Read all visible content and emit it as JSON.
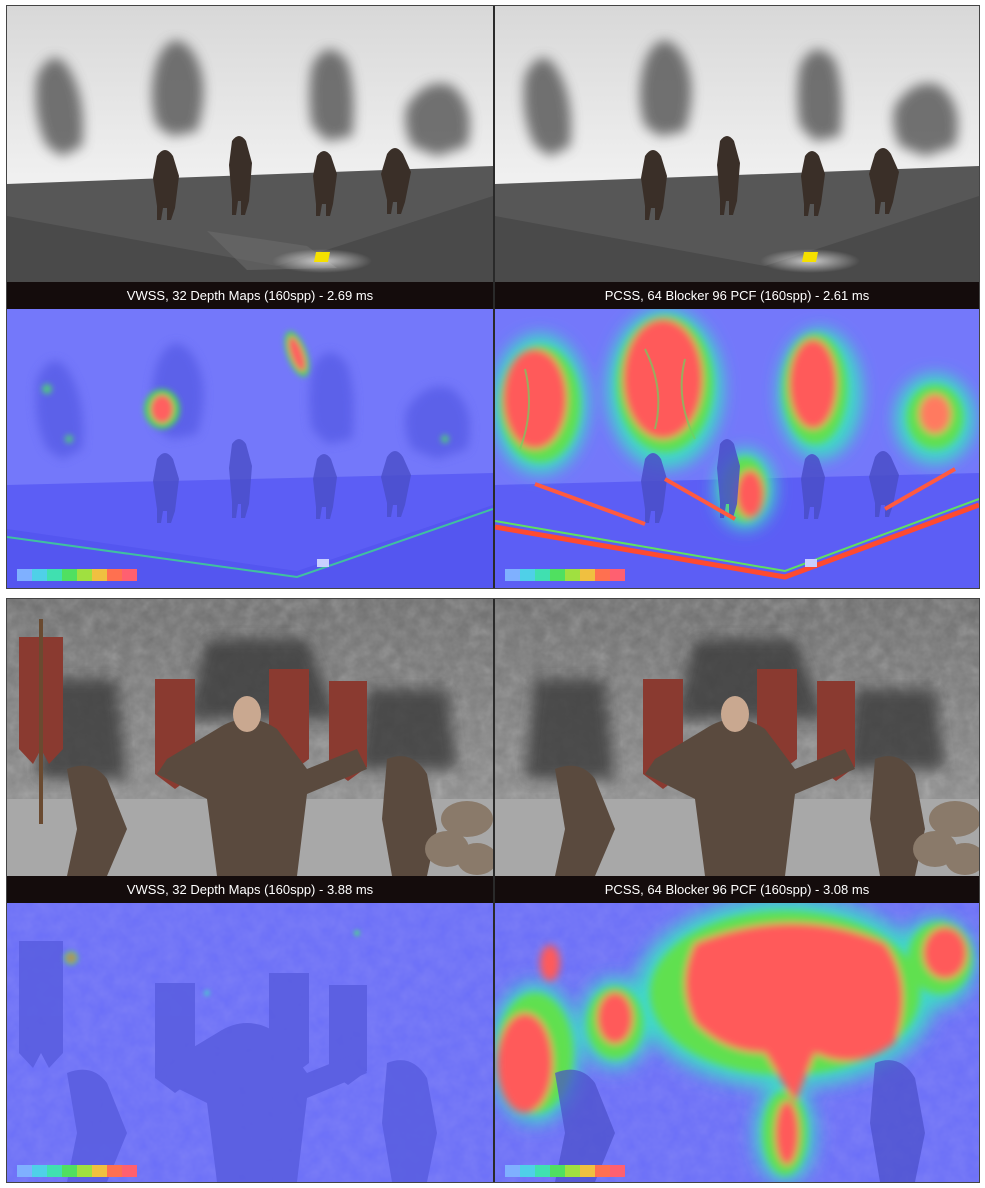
{
  "comparisons": [
    {
      "scene": "characters-on-plane",
      "captions": {
        "left": "VWSS, 32 Depth Maps (160spp) - 2.69 ms",
        "right": "PCSS, 64 Blocker 96 PCF (160spp) - 2.61 ms"
      }
    },
    {
      "scene": "castle-courtyard",
      "captions": {
        "left": "VWSS, 32 Depth Maps (160spp) - 3.88 ms",
        "right": "PCSS, 64 Blocker 96 PCF (160spp) - 3.08 ms"
      }
    }
  ],
  "heatmap_scale": {
    "colors": [
      "#7fb0ff",
      "#4fd0e8",
      "#40e0b0",
      "#50e060",
      "#a0e040",
      "#f0c040",
      "#ff7050",
      "#ff6070"
    ]
  },
  "colors": {
    "heatmap_background": "#6a6ef8",
    "hot": "#ff5a5a",
    "caption_bar": "#140c0c"
  }
}
